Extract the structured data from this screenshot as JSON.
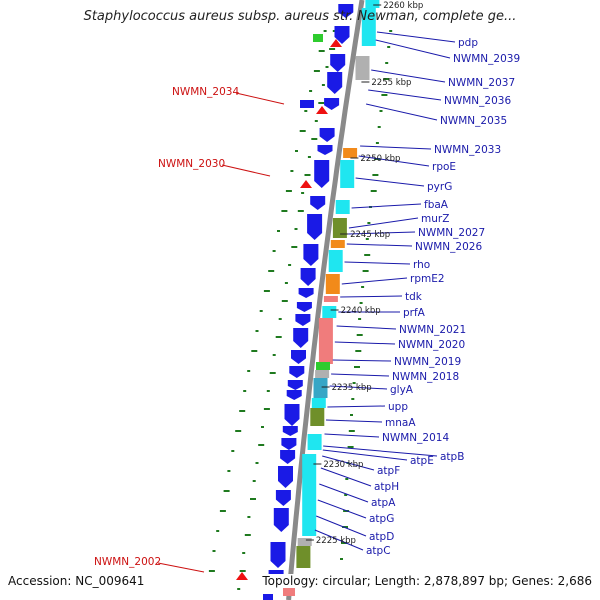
{
  "title": "Staphylococcus aureus subsp. aureus str. Newman, complete ge...",
  "accession": "Accession: NC_009641",
  "stats": "Topology: circular; Length: 2,878,897 bp; Genes: 2,686",
  "colors": {
    "blue": "#1a1ae6",
    "cyan": "#1fe6f0",
    "teal": "#37a6c6",
    "olive": "#6f8f2a",
    "orange": "#f28a1a",
    "salmon": "#f07c7c",
    "grey": "#b0b0b0",
    "red": "#ee1111",
    "green": "#2ecc2e",
    "label_blue": "#1a1aaa",
    "label_red": "#cc1111"
  },
  "kbp_marks": [
    "2260 kbp",
    "2255 kbp",
    "2250 kbp",
    "2245 kbp",
    "2240 kbp",
    "2235 kbp",
    "2230 kbp",
    "2225 kbp"
  ],
  "right_labels": [
    "pdp",
    "NWMN_2039",
    "NWMN_2037",
    "NWMN_2036",
    "NWMN_2035",
    "NWMN_2033",
    "rpoE",
    "pyrG",
    "fbaA",
    "murZ",
    "NWMN_2027",
    "NWMN_2026",
    "rho",
    "rpmE2",
    "tdk",
    "prfA",
    "NWMN_2021",
    "NWMN_2020",
    "NWMN_2019",
    "NWMN_2018",
    "glyA",
    "upp",
    "mnaA",
    "NWMN_2014",
    "atpE",
    "atpB",
    "atpF",
    "atpH",
    "atpA",
    "atpG",
    "atpD",
    "atpC"
  ],
  "left_labels": [
    "NWMN_2034",
    "NWMN_2030",
    "NWMN_2002"
  ]
}
